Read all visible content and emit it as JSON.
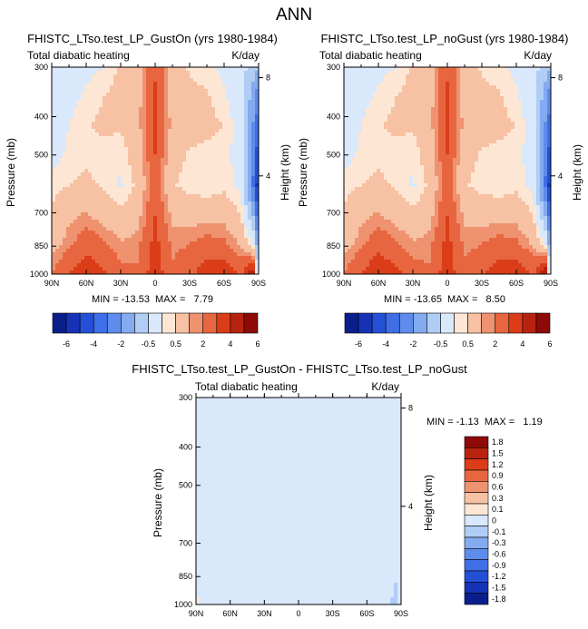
{
  "figure_title": "ANN",
  "colors": {
    "palette_13": [
      "#0a1f8c",
      "#1633b5",
      "#2450d8",
      "#3f6fe6",
      "#5e8cec",
      "#84aaef",
      "#b0cdf5",
      "#d9e8fa",
      "#fde6d4",
      "#f7c1a3",
      "#ef9270",
      "#e8663f",
      "#db3d19",
      "#b8230f",
      "#8d0a06"
    ],
    "palette_diff": [
      "#0a1f8c",
      "#1633b5",
      "#2450d8",
      "#3f6fe6",
      "#5e8cec",
      "#84aaef",
      "#b0cdf5",
      "#d9e8fa",
      "#fde6d4",
      "#f7c1a3",
      "#ef9270",
      "#e8663f",
      "#db3d19",
      "#b8230f",
      "#8d0a06"
    ]
  },
  "chart_data": [
    {
      "type": "heatmap",
      "title": "FHISTC_LTso.test_LP_GustOn (yrs 1980-1984)",
      "left_string": "Total diabatic heating",
      "right_string": "K/day",
      "ylabel": "Pressure (mb)",
      "ylabel_right": "Height (km)",
      "x": [
        -90,
        -75,
        -60,
        -45,
        -30,
        -15,
        -5,
        0,
        5,
        15,
        30,
        45,
        60,
        75,
        85,
        90
      ],
      "xticks": [
        "90N",
        "60N",
        "30N",
        "0",
        "30S",
        "60S",
        "90S"
      ],
      "xtick_values": [
        -90,
        -60,
        -30,
        0,
        30,
        60,
        90
      ],
      "yticks": [
        "300",
        "400",
        "500",
        "700",
        "850",
        "1000"
      ],
      "ytick_values": [
        300,
        400,
        500,
        700,
        850,
        1000
      ],
      "ylim": [
        300,
        1000
      ],
      "height_ticks": [
        "8",
        "4"
      ],
      "height_tick_values": [
        8,
        4
      ],
      "stats": "MIN = -13.53  MAX =   7.79",
      "field": [
        [
          -1.5,
          -1.4,
          -1.2,
          -1.0,
          -0.4,
          0.1,
          1.2,
          1.8,
          1.2,
          0.0,
          -0.6,
          -0.8,
          -1.2,
          -1.6,
          -2.5,
          -3.0
        ],
        [
          -1.4,
          -1.2,
          -0.9,
          -0.5,
          -0.2,
          0.2,
          1.4,
          2.2,
          1.4,
          0.1,
          -0.3,
          -0.4,
          -0.9,
          -1.6,
          -3.5,
          -5.0
        ],
        [
          -1.3,
          -1.0,
          -0.6,
          -0.3,
          -0.4,
          0.2,
          1.6,
          2.4,
          1.6,
          0.2,
          -0.2,
          -0.3,
          -0.5,
          -1.5,
          -4.0,
          -6.0
        ],
        [
          -1.2,
          -0.9,
          -0.7,
          -0.8,
          -0.9,
          0.0,
          1.2,
          2.0,
          1.2,
          -0.2,
          -0.6,
          -0.7,
          -0.8,
          -1.4,
          -4.5,
          -7.0
        ],
        [
          -0.8,
          -0.5,
          -0.3,
          -0.6,
          -1.1,
          -0.3,
          1.0,
          1.8,
          1.0,
          -0.4,
          -0.8,
          -0.9,
          -0.7,
          -1.2,
          -5.0,
          -8.0
        ],
        [
          -0.3,
          0.3,
          0.6,
          0.1,
          -0.3,
          0.2,
          1.3,
          2.0,
          1.3,
          0.3,
          0.2,
          0.1,
          0.2,
          -0.6,
          -3.0,
          -6.0
        ],
        [
          0.2,
          0.8,
          1.6,
          1.2,
          0.6,
          0.8,
          1.8,
          2.4,
          1.8,
          0.8,
          1.0,
          1.4,
          1.2,
          0.4,
          -1.0,
          -4.0
        ],
        [
          1.0,
          2.1,
          2.8,
          2.2,
          1.3,
          1.1,
          2.2,
          2.6,
          2.2,
          1.2,
          1.8,
          2.6,
          2.8,
          1.8,
          4.0,
          -3.0
        ]
      ]
    },
    {
      "type": "heatmap",
      "title": "FHISTC_LTso.test_LP_noGust (yrs 1980-1984)",
      "left_string": "Total diabatic heating",
      "right_string": "K/day",
      "ylabel": "Pressure (mb)",
      "ylabel_right": "Height (km)",
      "x": [
        -90,
        -75,
        -60,
        -45,
        -30,
        -15,
        -5,
        0,
        5,
        15,
        30,
        45,
        60,
        75,
        85,
        90
      ],
      "xticks": [
        "90N",
        "60N",
        "30N",
        "0",
        "30S",
        "60S",
        "90S"
      ],
      "xtick_values": [
        -90,
        -60,
        -30,
        0,
        30,
        60,
        90
      ],
      "yticks": [
        "300",
        "400",
        "500",
        "700",
        "850",
        "1000"
      ],
      "ytick_values": [
        300,
        400,
        500,
        700,
        850,
        1000
      ],
      "ylim": [
        300,
        1000
      ],
      "height_ticks": [
        "8",
        "4"
      ],
      "height_tick_values": [
        8,
        4
      ],
      "stats": "MIN = -13.65  MAX =   8.50",
      "field": [
        [
          -1.5,
          -1.4,
          -1.2,
          -1.0,
          -0.4,
          0.1,
          1.2,
          1.8,
          1.2,
          0.0,
          -0.6,
          -0.8,
          -1.2,
          -1.6,
          -2.5,
          -3.0
        ],
        [
          -1.4,
          -1.2,
          -0.9,
          -0.5,
          -0.2,
          0.2,
          1.4,
          2.2,
          1.4,
          0.1,
          -0.3,
          -0.4,
          -0.9,
          -1.6,
          -3.5,
          -5.0
        ],
        [
          -1.3,
          -1.0,
          -0.6,
          -0.3,
          -0.4,
          0.2,
          1.6,
          2.4,
          1.6,
          0.2,
          -0.2,
          -0.3,
          -0.5,
          -1.5,
          -4.0,
          -6.0
        ],
        [
          -1.2,
          -0.9,
          -0.7,
          -0.8,
          -0.9,
          0.0,
          1.2,
          2.0,
          1.2,
          -0.2,
          -0.6,
          -0.7,
          -0.8,
          -1.4,
          -4.5,
          -7.0
        ],
        [
          -0.8,
          -0.5,
          -0.3,
          -0.6,
          -1.1,
          -0.3,
          1.0,
          1.8,
          1.0,
          -0.4,
          -0.8,
          -0.9,
          -0.7,
          -1.2,
          -5.0,
          -8.0
        ],
        [
          -0.3,
          0.3,
          0.6,
          0.1,
          -0.3,
          0.2,
          1.3,
          2.0,
          1.3,
          0.3,
          0.2,
          0.1,
          0.2,
          -0.6,
          -3.0,
          -6.0
        ],
        [
          0.2,
          0.8,
          1.6,
          1.2,
          0.6,
          0.8,
          1.8,
          2.4,
          1.8,
          0.8,
          1.0,
          1.4,
          1.2,
          0.4,
          -1.0,
          -4.0
        ],
        [
          1.0,
          2.1,
          2.9,
          2.3,
          1.4,
          1.1,
          2.2,
          2.7,
          2.2,
          1.2,
          1.9,
          2.7,
          2.9,
          1.9,
          4.5,
          -3.0
        ]
      ]
    },
    {
      "type": "heatmap",
      "title": "FHISTC_LTso.test_LP_GustOn - FHISTC_LTso.test_LP_noGust",
      "left_string": "Total diabatic heating",
      "right_string": "K/day",
      "ylabel": "Pressure (mb)",
      "ylabel_right": "Height (km)",
      "x": [
        -90,
        -75,
        -60,
        -45,
        -30,
        -15,
        -5,
        0,
        5,
        15,
        30,
        45,
        60,
        75,
        85,
        90
      ],
      "xticks": [
        "90N",
        "60N",
        "30N",
        "0",
        "30S",
        "60S",
        "90S"
      ],
      "xtick_values": [
        -90,
        -60,
        -30,
        0,
        30,
        60,
        90
      ],
      "yticks": [
        "300",
        "400",
        "500",
        "700",
        "850",
        "1000"
      ],
      "ytick_values": [
        300,
        400,
        500,
        700,
        850,
        1000
      ],
      "ylim": [
        300,
        1000
      ],
      "height_ticks": [
        "8",
        "4"
      ],
      "height_tick_values": [
        8,
        4
      ],
      "stats": "MIN = -1.13  MAX =   1.19",
      "field": [
        [
          0.05,
          -0.04,
          0.06,
          0.05,
          -0.05,
          -0.05,
          0.06,
          0.04,
          0.05,
          -0.05,
          0.05,
          0.06,
          -0.04,
          0.05,
          -0.08,
          0.08
        ],
        [
          0.06,
          0.05,
          0.05,
          0.06,
          -0.06,
          -0.05,
          0.05,
          0.06,
          0.05,
          -0.06,
          0.05,
          0.05,
          -0.05,
          0.06,
          -0.07,
          0.06
        ],
        [
          0.05,
          0.06,
          0.05,
          0.05,
          -0.05,
          -0.06,
          0.06,
          0.05,
          0.06,
          -0.05,
          0.06,
          0.05,
          -0.06,
          0.05,
          -0.06,
          0.08
        ],
        [
          0.05,
          0.05,
          0.06,
          0.05,
          -0.05,
          -0.05,
          0.05,
          0.06,
          0.05,
          -0.06,
          0.05,
          0.06,
          -0.05,
          0.06,
          -0.08,
          -0.06
        ],
        [
          0.06,
          0.05,
          0.05,
          0.06,
          -0.06,
          -0.05,
          0.05,
          0.05,
          0.06,
          -0.05,
          0.06,
          0.05,
          -0.06,
          0.05,
          -0.07,
          0.07
        ],
        [
          0.05,
          0.06,
          0.05,
          0.05,
          -0.05,
          -0.06,
          0.06,
          0.05,
          0.05,
          -0.06,
          0.05,
          0.06,
          -0.05,
          0.06,
          -0.06,
          -0.07
        ],
        [
          0.05,
          0.05,
          0.06,
          0.05,
          -0.05,
          -0.05,
          0.05,
          0.06,
          0.05,
          -0.05,
          0.06,
          0.05,
          -0.06,
          0.05,
          -0.08,
          0.06
        ],
        [
          0.12,
          0.05,
          0.05,
          0.06,
          -0.06,
          -0.06,
          0.06,
          0.05,
          0.06,
          -0.06,
          0.05,
          0.05,
          -0.06,
          0.06,
          -0.2,
          0.12
        ]
      ]
    }
  ],
  "colorbar_shared": {
    "orientation": "horizontal",
    "labels": [
      "-6",
      "-4",
      "-2",
      "-0.5",
      "0.5",
      "2",
      "4",
      "6"
    ],
    "levels": [
      -8,
      -7,
      -6,
      -5,
      -4,
      -3,
      -2,
      -1,
      -0.5,
      0.5,
      1,
      2,
      3,
      4,
      5,
      6,
      7,
      8
    ]
  },
  "colorbar_diff": {
    "orientation": "vertical",
    "labels": [
      "1.8",
      "1.5",
      "1.2",
      "0.9",
      "0.6",
      "0.3",
      "0.1",
      "0",
      "-0.1",
      "-0.3",
      "-0.6",
      "-0.9",
      "-1.2",
      "-1.5",
      "-1.8"
    ],
    "levels": [
      -1.8,
      -1.5,
      -1.2,
      -0.9,
      -0.6,
      -0.3,
      -0.1,
      0.1,
      0.3,
      0.6,
      0.9,
      1.2,
      1.5,
      1.8
    ]
  }
}
